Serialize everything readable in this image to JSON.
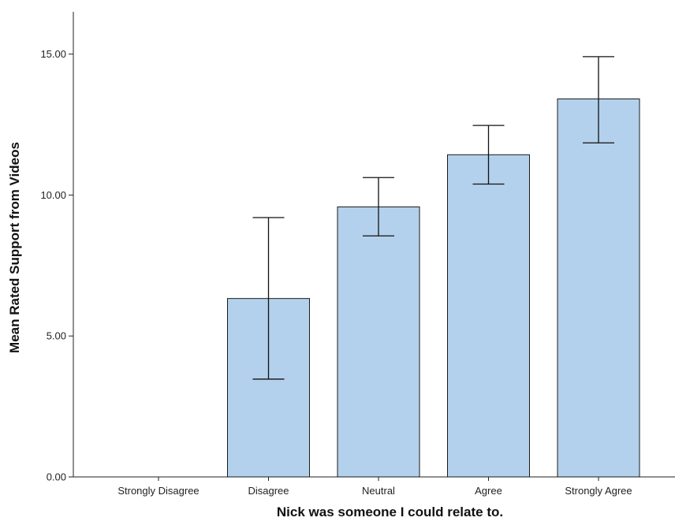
{
  "chart_data": {
    "type": "bar",
    "title": "",
    "xlabel": "Nick was someone I could relate to.",
    "ylabel": "Mean Rated Support from Videos",
    "categories": [
      "Strongly Disagree",
      "Disagree",
      "Neutral",
      "Agree",
      "Strongly Agree"
    ],
    "values": [
      null,
      6.33,
      9.58,
      11.43,
      13.41
    ],
    "error_low": [
      null,
      3.47,
      8.55,
      10.39,
      11.85
    ],
    "error_high": [
      null,
      9.2,
      10.62,
      12.47,
      14.91
    ],
    "ylim": [
      0,
      16.5
    ],
    "yticks": [
      0,
      5,
      10,
      15
    ],
    "ytick_labels": [
      "0.00",
      "5.00",
      "10.00",
      "15.00"
    ],
    "grid": false,
    "bar_color": "#b3d1ec",
    "bar_edge_color": "#1a1a1a"
  }
}
